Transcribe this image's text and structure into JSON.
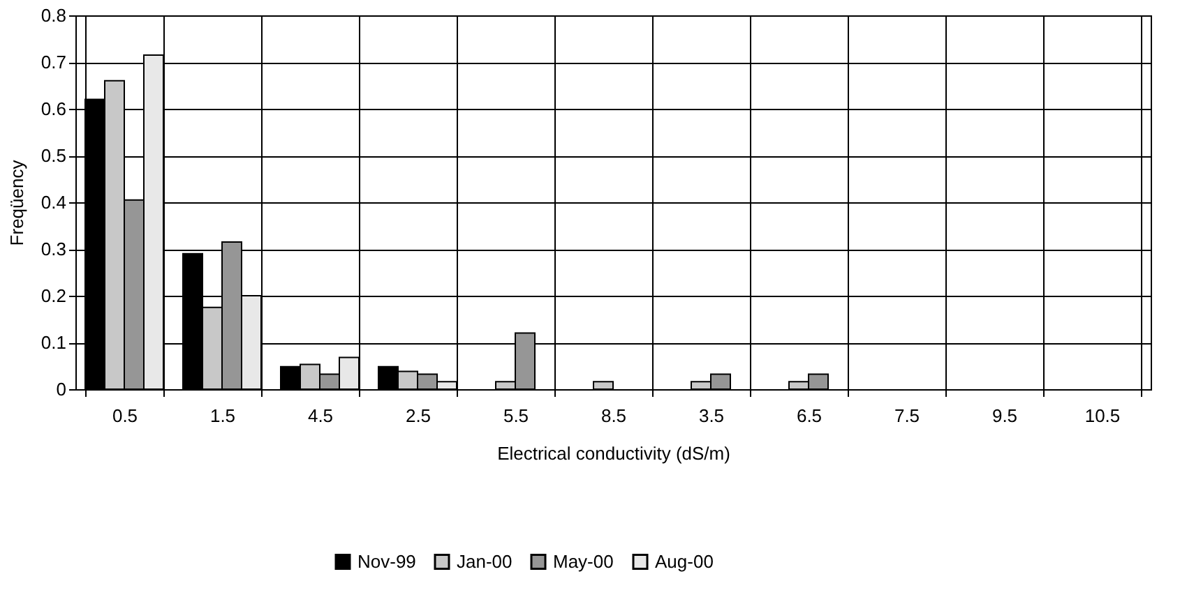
{
  "chart_data": {
    "type": "bar",
    "xlabel": "Electrical conductivity (dS/m)",
    "ylabel": "Freqüency",
    "categories": [
      "0.5",
      "1.5",
      "4.5",
      "2.5",
      "5.5",
      "8.5",
      "3.5",
      "6.5",
      "7.5",
      "9.5",
      "10.5"
    ],
    "series": [
      {
        "name": "Nov-99",
        "color": "#000000",
        "values": [
          0.62,
          0.29,
          0.048,
          0.048,
          0,
          0,
          0,
          0,
          0,
          0,
          0
        ]
      },
      {
        "name": "Jan-00",
        "color": "#c8c8c8",
        "values": [
          0.66,
          0.175,
          0.053,
          0.038,
          0.016,
          0.016,
          0.016,
          0.016,
          0,
          0,
          0
        ]
      },
      {
        "name": "May-00",
        "color": "#969696",
        "values": [
          0.405,
          0.315,
          0.032,
          0.032,
          0.12,
          0,
          0.032,
          0.032,
          0,
          0,
          0
        ]
      },
      {
        "name": "Aug-00",
        "color": "#e8e8e8",
        "values": [
          0.715,
          0.2,
          0.068,
          0.016,
          0,
          0,
          0,
          0,
          0,
          0,
          0
        ]
      }
    ],
    "ylim": [
      0,
      0.8
    ],
    "yticks": [
      0,
      0.1,
      0.2,
      0.3,
      0.4,
      0.5,
      0.6,
      0.7,
      0.8
    ],
    "grid": true,
    "legend": "bottom"
  }
}
